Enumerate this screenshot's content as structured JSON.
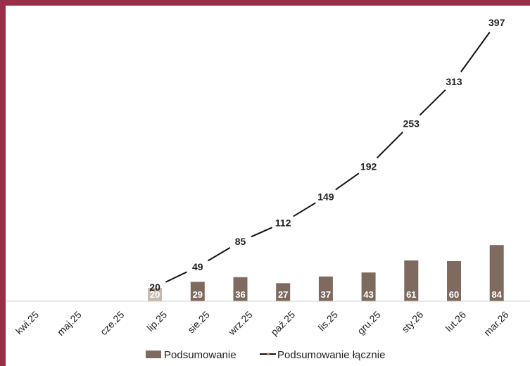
{
  "chart_data": {
    "type": "bar+line",
    "categories": [
      "kwi.25",
      "maj.25",
      "cze.25",
      "lip.25",
      "sie.25",
      "wrz.25",
      "paź.25",
      "lis.25",
      "gru.25",
      "sty.26",
      "lut.26",
      "mar.26"
    ],
    "series": [
      {
        "name": "Podsumowanie",
        "type": "bar",
        "color": "#7f6a5f",
        "values": [
          null,
          null,
          null,
          20,
          29,
          36,
          27,
          37,
          43,
          61,
          60,
          84
        ]
      },
      {
        "name": "Podsumowanie łącznie",
        "type": "line",
        "color": "#111111",
        "values": [
          null,
          null,
          null,
          20,
          49,
          85,
          112,
          149,
          192,
          253,
          313,
          397
        ]
      }
    ],
    "legend": {
      "position": "bottom",
      "bar_label": "Podsumowanie",
      "line_label": "Podsumowanie łącznie"
    },
    "grid": false
  }
}
